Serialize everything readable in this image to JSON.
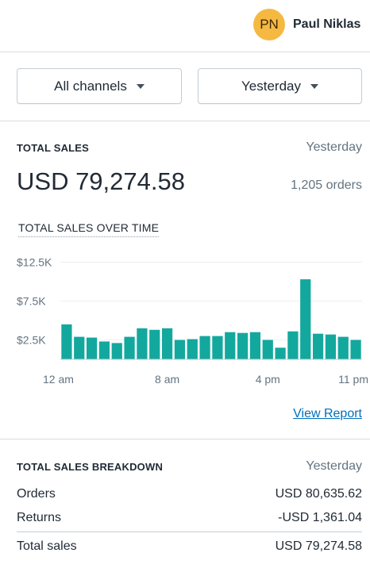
{
  "user": {
    "initials": "PN",
    "name": "Paul Niklas",
    "avatar_color": "#f5b942"
  },
  "filters": {
    "channel": "All channels",
    "period": "Yesterday"
  },
  "total_sales": {
    "label": "TOTAL SALES",
    "period": "Yesterday",
    "amount": "USD 79,274.58",
    "orders": "1,205 orders"
  },
  "chart_section": {
    "label": "TOTAL SALES OVER TIME",
    "view_report": "View Report"
  },
  "chart_data": {
    "type": "bar",
    "bar_color": "#13a89e",
    "y_ticks": [
      "$2.5K",
      "$7.5K",
      "$12.5K"
    ],
    "y_tick_values": [
      2500,
      7500,
      12500
    ],
    "ylim": [
      0,
      13000
    ],
    "x_ticks": [
      "12 am",
      "8 am",
      "4 pm",
      "11 pm"
    ],
    "x_tick_hours": [
      0,
      8,
      16,
      23
    ],
    "hours": [
      0,
      1,
      2,
      3,
      4,
      5,
      6,
      7,
      8,
      9,
      10,
      11,
      12,
      13,
      14,
      15,
      16,
      17,
      18,
      19,
      20,
      21,
      22,
      23
    ],
    "values": [
      4500,
      2900,
      2800,
      2300,
      2100,
      2900,
      4000,
      3800,
      4000,
      2500,
      2600,
      3000,
      3000,
      3500,
      3400,
      3500,
      2500,
      1500,
      3600,
      10300,
      3300,
      3200,
      2900,
      2500
    ]
  },
  "breakdown": {
    "label": "TOTAL SALES BREAKDOWN",
    "period": "Yesterday",
    "rows": [
      {
        "label": "Orders",
        "value": "USD 80,635.62"
      },
      {
        "label": "Returns",
        "value": "-USD 1,361.04"
      }
    ],
    "total": {
      "label": "Total sales",
      "value": "USD 79,274.58"
    }
  }
}
